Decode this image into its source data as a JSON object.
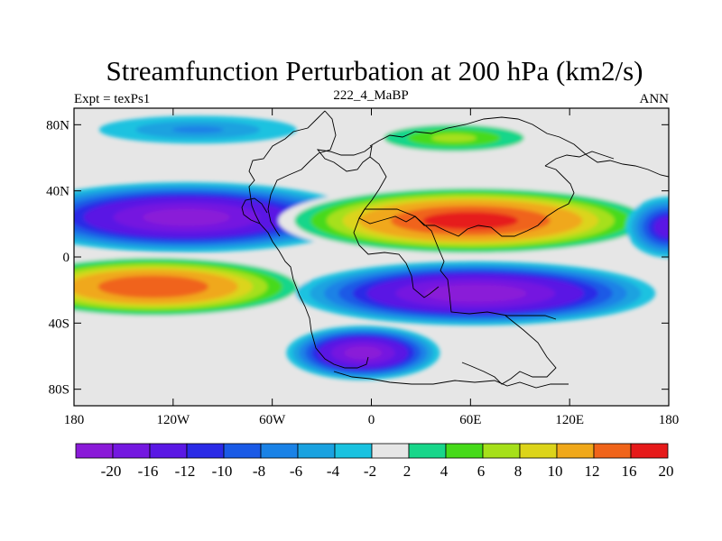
{
  "chart_data": {
    "type": "heatmap",
    "title": "Streamfunction Perturbation at 200 hPa (km2/s)",
    "left_label": "Expt = texPs1",
    "center_label": "222_4_MaBP",
    "right_label": "ANN",
    "xlim": [
      -180,
      180
    ],
    "ylim": [
      -90,
      90
    ],
    "xticks": [
      {
        "value": -180,
        "label": "180"
      },
      {
        "value": -120,
        "label": "120W"
      },
      {
        "value": -60,
        "label": "60W"
      },
      {
        "value": 0,
        "label": "0"
      },
      {
        "value": 60,
        "label": "60E"
      },
      {
        "value": 120,
        "label": "120E"
      },
      {
        "value": 180,
        "label": "180"
      }
    ],
    "yticks": [
      {
        "value": 80,
        "label": "80N"
      },
      {
        "value": 40,
        "label": "40N"
      },
      {
        "value": 0,
        "label": "0"
      },
      {
        "value": -40,
        "label": "40S"
      },
      {
        "value": -80,
        "label": "80S"
      }
    ],
    "colorbar": {
      "levels": [
        -20,
        -16,
        -12,
        -10,
        -8,
        -6,
        -4,
        -2,
        2,
        4,
        6,
        8,
        10,
        12,
        16,
        20
      ],
      "labels": [
        "-20",
        "-16",
        "-12",
        "-10",
        "-8",
        "-6",
        "-4",
        "-2",
        "2",
        "4",
        "6",
        "8",
        "10",
        "12",
        "16",
        "20"
      ],
      "colors": [
        "#8a1ad8",
        "#7418e0",
        "#5a18e4",
        "#2a2ae6",
        "#1a5ae6",
        "#1a82e6",
        "#1aa2e0",
        "#1ac2e0",
        "#e6e6e6",
        "#18d68a",
        "#46da1a",
        "#a6e01a",
        "#dcd41a",
        "#f0a81a",
        "#f0641a",
        "#e61a1a"
      ]
    },
    "features": [
      {
        "name": "NH subtropical low (Pacific)",
        "lon": -112,
        "lat": 24,
        "peak": -21
      },
      {
        "name": "NH subtropical high (Asia)",
        "lon": 60,
        "lat": 22,
        "peak": 21
      },
      {
        "name": "SH subtropical high (Pacific)",
        "lon": -132,
        "lat": -18,
        "peak": 19
      },
      {
        "name": "SH subtropical low (Indian Ocean)",
        "lon": 63,
        "lat": -22,
        "peak": -22
      },
      {
        "name": "SH mid-latitude low (Atlantic)",
        "lon": -5,
        "lat": -58,
        "peak": -21
      },
      {
        "name": "Arctic high (Asia)",
        "lon": 50,
        "lat": 72,
        "peak": 8
      },
      {
        "name": "Arctic low (Pacific)",
        "lon": -105,
        "lat": 77,
        "peak": -6
      },
      {
        "name": "NH mid-latitude low (E Pacific)",
        "lon": 180,
        "lat": 18,
        "peak": -14
      }
    ]
  }
}
